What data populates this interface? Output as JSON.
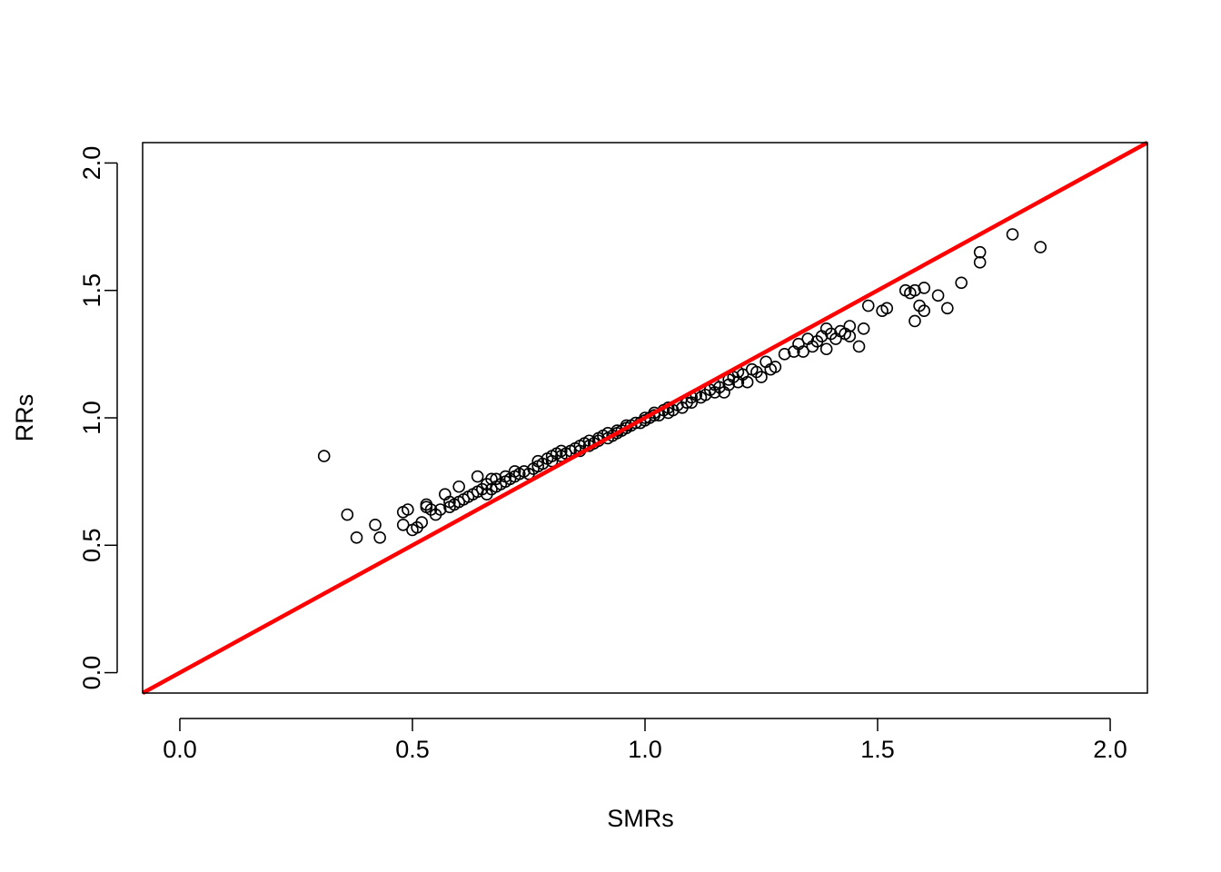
{
  "chart_data": {
    "type": "scatter",
    "title": "",
    "xlabel": "SMRs",
    "ylabel": "RRs",
    "xlim": [
      -0.08,
      2.08
    ],
    "ylim": [
      -0.08,
      2.08
    ],
    "xticks": [
      "0.0",
      "0.5",
      "1.0",
      "1.5",
      "2.0"
    ],
    "yticks": [
      "0.0",
      "0.5",
      "1.0",
      "1.5",
      "2.0"
    ],
    "grid": false,
    "legend": "none",
    "reference_line": {
      "slope": 1,
      "intercept": 0,
      "color": "#ff0000"
    },
    "point_color": "#000000",
    "points": [
      [
        0.31,
        0.85
      ],
      [
        0.36,
        0.62
      ],
      [
        0.38,
        0.53
      ],
      [
        0.42,
        0.58
      ],
      [
        0.43,
        0.53
      ],
      [
        0.48,
        0.58
      ],
      [
        0.48,
        0.63
      ],
      [
        0.49,
        0.64
      ],
      [
        0.5,
        0.56
      ],
      [
        0.51,
        0.57
      ],
      [
        0.52,
        0.59
      ],
      [
        0.53,
        0.65
      ],
      [
        0.53,
        0.66
      ],
      [
        0.54,
        0.64
      ],
      [
        0.55,
        0.62
      ],
      [
        0.56,
        0.64
      ],
      [
        0.57,
        0.7
      ],
      [
        0.58,
        0.65
      ],
      [
        0.58,
        0.67
      ],
      [
        0.59,
        0.66
      ],
      [
        0.6,
        0.73
      ],
      [
        0.6,
        0.67
      ],
      [
        0.61,
        0.68
      ],
      [
        0.62,
        0.69
      ],
      [
        0.63,
        0.7
      ],
      [
        0.64,
        0.77
      ],
      [
        0.64,
        0.71
      ],
      [
        0.65,
        0.72
      ],
      [
        0.66,
        0.7
      ],
      [
        0.66,
        0.74
      ],
      [
        0.67,
        0.76
      ],
      [
        0.67,
        0.72
      ],
      [
        0.68,
        0.73
      ],
      [
        0.68,
        0.76
      ],
      [
        0.69,
        0.74
      ],
      [
        0.7,
        0.77
      ],
      [
        0.7,
        0.75
      ],
      [
        0.71,
        0.76
      ],
      [
        0.72,
        0.79
      ],
      [
        0.72,
        0.77
      ],
      [
        0.73,
        0.78
      ],
      [
        0.74,
        0.79
      ],
      [
        0.75,
        0.78
      ],
      [
        0.76,
        0.8
      ],
      [
        0.77,
        0.81
      ],
      [
        0.77,
        0.83
      ],
      [
        0.78,
        0.82
      ],
      [
        0.79,
        0.84
      ],
      [
        0.8,
        0.83
      ],
      [
        0.8,
        0.85
      ],
      [
        0.81,
        0.86
      ],
      [
        0.82,
        0.85
      ],
      [
        0.82,
        0.87
      ],
      [
        0.83,
        0.86
      ],
      [
        0.84,
        0.87
      ],
      [
        0.85,
        0.88
      ],
      [
        0.86,
        0.87
      ],
      [
        0.86,
        0.89
      ],
      [
        0.87,
        0.9
      ],
      [
        0.88,
        0.89
      ],
      [
        0.88,
        0.91
      ],
      [
        0.89,
        0.9
      ],
      [
        0.9,
        0.91
      ],
      [
        0.9,
        0.92
      ],
      [
        0.91,
        0.93
      ],
      [
        0.92,
        0.92
      ],
      [
        0.92,
        0.94
      ],
      [
        0.93,
        0.93
      ],
      [
        0.94,
        0.94
      ],
      [
        0.94,
        0.95
      ],
      [
        0.95,
        0.95
      ],
      [
        0.96,
        0.96
      ],
      [
        0.96,
        0.97
      ],
      [
        0.97,
        0.97
      ],
      [
        0.98,
        0.98
      ],
      [
        0.99,
        0.98
      ],
      [
        1.0,
        0.99
      ],
      [
        1.0,
        1.0
      ],
      [
        1.01,
        1.0
      ],
      [
        1.02,
        1.01
      ],
      [
        1.02,
        1.02
      ],
      [
        1.03,
        1.01
      ],
      [
        1.04,
        1.03
      ],
      [
        1.05,
        1.02
      ],
      [
        1.05,
        1.04
      ],
      [
        1.06,
        1.03
      ],
      [
        1.07,
        1.05
      ],
      [
        1.08,
        1.04
      ],
      [
        1.09,
        1.06
      ],
      [
        1.1,
        1.08
      ],
      [
        1.1,
        1.06
      ],
      [
        1.11,
        1.09
      ],
      [
        1.12,
        1.08
      ],
      [
        1.13,
        1.09
      ],
      [
        1.14,
        1.11
      ],
      [
        1.15,
        1.1
      ],
      [
        1.15,
        1.13
      ],
      [
        1.16,
        1.12
      ],
      [
        1.17,
        1.1
      ],
      [
        1.18,
        1.13
      ],
      [
        1.18,
        1.15
      ],
      [
        1.19,
        1.16
      ],
      [
        1.2,
        1.14
      ],
      [
        1.2,
        1.18
      ],
      [
        1.21,
        1.17
      ],
      [
        1.22,
        1.14
      ],
      [
        1.23,
        1.19
      ],
      [
        1.24,
        1.18
      ],
      [
        1.25,
        1.16
      ],
      [
        1.26,
        1.22
      ],
      [
        1.27,
        1.19
      ],
      [
        1.28,
        1.2
      ],
      [
        1.3,
        1.25
      ],
      [
        1.32,
        1.26
      ],
      [
        1.33,
        1.29
      ],
      [
        1.34,
        1.26
      ],
      [
        1.35,
        1.31
      ],
      [
        1.36,
        1.28
      ],
      [
        1.37,
        1.3
      ],
      [
        1.38,
        1.32
      ],
      [
        1.39,
        1.27
      ],
      [
        1.39,
        1.35
      ],
      [
        1.4,
        1.33
      ],
      [
        1.41,
        1.31
      ],
      [
        1.42,
        1.34
      ],
      [
        1.43,
        1.33
      ],
      [
        1.44,
        1.36
      ],
      [
        1.44,
        1.32
      ],
      [
        1.46,
        1.28
      ],
      [
        1.47,
        1.35
      ],
      [
        1.48,
        1.44
      ],
      [
        1.51,
        1.42
      ],
      [
        1.52,
        1.43
      ],
      [
        1.56,
        1.5
      ],
      [
        1.57,
        1.49
      ],
      [
        1.58,
        1.38
      ],
      [
        1.58,
        1.5
      ],
      [
        1.59,
        1.44
      ],
      [
        1.6,
        1.42
      ],
      [
        1.6,
        1.51
      ],
      [
        1.63,
        1.48
      ],
      [
        1.65,
        1.43
      ],
      [
        1.68,
        1.53
      ],
      [
        1.72,
        1.65
      ],
      [
        1.72,
        1.61
      ],
      [
        1.79,
        1.72
      ],
      [
        1.85,
        1.67
      ]
    ]
  }
}
